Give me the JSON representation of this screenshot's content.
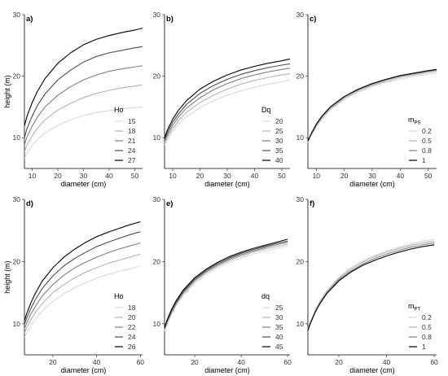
{
  "chart_data": [
    {
      "type": "line",
      "panel_label": "a)",
      "xlabel": "diameter (cm)",
      "ylabel": "height (m)",
      "xlim": [
        7,
        53
      ],
      "ylim": [
        5,
        30
      ],
      "xticks": [
        10,
        20,
        30,
        40,
        50
      ],
      "yticks": [
        10,
        20,
        30
      ],
      "legend_title": "Ho",
      "legend_title_sub": "",
      "legend_position": "bottom-right",
      "series": [
        {
          "name": "15",
          "color": "#d9d9d9",
          "x": [
            7,
            8,
            10,
            12,
            15,
            20,
            25,
            30,
            35,
            40,
            45,
            50,
            53
          ],
          "y": [
            6.6,
            7.5,
            8.7,
            9.7,
            10.8,
            12.0,
            12.9,
            13.6,
            14.1,
            14.4,
            14.7,
            14.9,
            15.0
          ]
        },
        {
          "name": "18",
          "color": "#b3b3b3",
          "x": [
            7,
            8,
            10,
            12,
            15,
            20,
            25,
            30,
            35,
            40,
            45,
            50,
            53
          ],
          "y": [
            7.7,
            8.8,
            10.3,
            11.5,
            12.9,
            14.5,
            15.6,
            16.5,
            17.2,
            17.7,
            18.1,
            18.4,
            18.6
          ]
        },
        {
          "name": "21",
          "color": "#808080",
          "x": [
            7,
            8,
            10,
            12,
            15,
            20,
            25,
            30,
            35,
            40,
            45,
            50,
            53
          ],
          "y": [
            8.8,
            10.1,
            11.9,
            13.3,
            15.0,
            16.9,
            18.3,
            19.4,
            20.2,
            20.8,
            21.2,
            21.5,
            21.7
          ]
        },
        {
          "name": "24",
          "color": "#4d4d4d",
          "x": [
            7,
            8,
            10,
            12,
            15,
            20,
            25,
            30,
            35,
            40,
            45,
            50,
            53
          ],
          "y": [
            10.0,
            11.5,
            13.5,
            15.2,
            17.1,
            19.4,
            21.0,
            22.3,
            23.2,
            23.8,
            24.2,
            24.6,
            24.8
          ]
        },
        {
          "name": "27",
          "color": "#000000",
          "x": [
            7,
            8,
            10,
            12,
            15,
            20,
            25,
            30,
            35,
            40,
            45,
            50,
            53
          ],
          "y": [
            11.9,
            13.5,
            15.7,
            17.5,
            19.6,
            22.1,
            23.8,
            25.1,
            26.0,
            26.6,
            27.1,
            27.5,
            27.8
          ]
        }
      ]
    },
    {
      "type": "line",
      "panel_label": "b)",
      "xlabel": "diameter (cm)",
      "ylabel": "",
      "xlim": [
        7,
        53
      ],
      "ylim": [
        5,
        30
      ],
      "xticks": [
        10,
        20,
        30,
        40,
        50
      ],
      "yticks": [
        10,
        20,
        30
      ],
      "legend_title": "Dq",
      "legend_title_sub": "",
      "legend_position": "bottom-right",
      "series": [
        {
          "name": "20",
          "color": "#d9d9d9",
          "x": [
            7,
            8,
            10,
            12,
            15,
            20,
            25,
            30,
            35,
            40,
            45,
            50,
            53
          ],
          "y": [
            8.8,
            9.6,
            11.0,
            12.1,
            13.4,
            14.9,
            16.0,
            16.9,
            17.6,
            18.2,
            18.7,
            19.1,
            19.4
          ]
        },
        {
          "name": "25",
          "color": "#b3b3b3",
          "x": [
            7,
            8,
            10,
            12,
            15,
            20,
            25,
            30,
            35,
            40,
            45,
            50,
            53
          ],
          "y": [
            9.1,
            10.0,
            11.5,
            12.7,
            14.1,
            15.7,
            16.9,
            17.9,
            18.7,
            19.3,
            19.8,
            20.2,
            20.4
          ]
        },
        {
          "name": "30",
          "color": "#808080",
          "x": [
            7,
            8,
            10,
            12,
            15,
            20,
            25,
            30,
            35,
            40,
            45,
            50,
            53
          ],
          "y": [
            9.4,
            10.4,
            12.0,
            13.3,
            14.8,
            16.5,
            17.8,
            18.8,
            19.6,
            20.2,
            20.7,
            21.1,
            21.3
          ]
        },
        {
          "name": "35",
          "color": "#4d4d4d",
          "x": [
            7,
            8,
            10,
            12,
            15,
            20,
            25,
            30,
            35,
            40,
            45,
            50,
            53
          ],
          "y": [
            9.7,
            10.8,
            12.5,
            13.8,
            15.4,
            17.2,
            18.5,
            19.5,
            20.3,
            20.9,
            21.4,
            21.8,
            22.0
          ]
        },
        {
          "name": "40",
          "color": "#000000",
          "x": [
            7,
            8,
            10,
            12,
            15,
            20,
            25,
            30,
            35,
            40,
            45,
            50,
            53
          ],
          "y": [
            10.0,
            11.2,
            13.0,
            14.4,
            16.0,
            17.9,
            19.2,
            20.2,
            21.0,
            21.6,
            22.1,
            22.5,
            22.8
          ]
        }
      ]
    },
    {
      "type": "line",
      "panel_label": "c)",
      "xlabel": "diameter (cm)",
      "ylabel": "",
      "xlim": [
        7,
        53
      ],
      "ylim": [
        5,
        30
      ],
      "xticks": [
        10,
        20,
        30,
        40,
        50
      ],
      "yticks": [
        10,
        20,
        30
      ],
      "legend_title": "m",
      "legend_title_sub": "PS",
      "legend_position": "bottom-right",
      "series": [
        {
          "name": "0.2",
          "color": "#d9d9d9",
          "x": [
            7,
            8,
            10,
            12,
            15,
            20,
            25,
            30,
            35,
            40,
            45,
            50,
            53
          ],
          "y": [
            9.2,
            10.2,
            11.8,
            13.0,
            14.5,
            16.2,
            17.4,
            18.3,
            19.0,
            19.5,
            20.0,
            20.3,
            20.5
          ]
        },
        {
          "name": "0.5",
          "color": "#b3b3b3",
          "x": [
            7,
            8,
            10,
            12,
            15,
            20,
            25,
            30,
            35,
            40,
            45,
            50,
            53
          ],
          "y": [
            9.3,
            10.3,
            11.9,
            13.2,
            14.7,
            16.4,
            17.6,
            18.5,
            19.2,
            19.8,
            20.2,
            20.6,
            20.8
          ]
        },
        {
          "name": "0.8",
          "color": "#808080",
          "x": [
            7,
            8,
            10,
            12,
            15,
            20,
            25,
            30,
            35,
            40,
            45,
            50,
            53
          ],
          "y": [
            9.4,
            10.4,
            12.1,
            13.4,
            14.9,
            16.6,
            17.8,
            18.7,
            19.4,
            20.0,
            20.4,
            20.8,
            21.0
          ]
        },
        {
          "name": "1",
          "color": "#000000",
          "x": [
            7,
            8,
            10,
            12,
            15,
            20,
            25,
            30,
            35,
            40,
            45,
            50,
            53
          ],
          "y": [
            9.5,
            10.5,
            12.2,
            13.5,
            15.0,
            16.7,
            17.9,
            18.8,
            19.5,
            20.1,
            20.5,
            20.9,
            21.1
          ]
        }
      ]
    },
    {
      "type": "line",
      "panel_label": "d)",
      "xlabel": "diameter (cm)",
      "ylabel": "height (m)",
      "xlim": [
        7,
        61
      ],
      "ylim": [
        5,
        30
      ],
      "xticks": [
        20,
        40,
        60
      ],
      "yticks": [
        10,
        20,
        30
      ],
      "legend_title": "Ho",
      "legend_title_sub": "",
      "legend_position": "bottom-right",
      "series": [
        {
          "name": "18",
          "color": "#d9d9d9",
          "x": [
            7,
            8,
            10,
            12,
            15,
            20,
            25,
            30,
            35,
            40,
            45,
            50,
            55,
            60
          ],
          "y": [
            7.8,
            8.5,
            9.7,
            10.7,
            12.0,
            13.6,
            14.8,
            15.8,
            16.6,
            17.3,
            17.9,
            18.4,
            18.8,
            19.3
          ]
        },
        {
          "name": "20",
          "color": "#b3b3b3",
          "x": [
            7,
            8,
            10,
            12,
            15,
            20,
            25,
            30,
            35,
            40,
            45,
            50,
            55,
            60
          ],
          "y": [
            8.5,
            9.3,
            10.7,
            11.8,
            13.2,
            15.0,
            16.3,
            17.4,
            18.3,
            19.0,
            19.7,
            20.2,
            20.7,
            21.2
          ]
        },
        {
          "name": "22",
          "color": "#808080",
          "x": [
            7,
            8,
            10,
            12,
            15,
            20,
            25,
            30,
            35,
            40,
            45,
            50,
            55,
            60
          ],
          "y": [
            9.2,
            10.1,
            11.6,
            12.8,
            14.4,
            16.3,
            17.8,
            19.0,
            19.9,
            20.7,
            21.4,
            22.0,
            22.5,
            23.0
          ]
        },
        {
          "name": "24",
          "color": "#4d4d4d",
          "x": [
            7,
            8,
            10,
            12,
            15,
            20,
            25,
            30,
            35,
            40,
            45,
            50,
            55,
            60
          ],
          "y": [
            9.9,
            10.9,
            12.5,
            13.9,
            15.6,
            17.7,
            19.3,
            20.5,
            21.5,
            22.4,
            23.1,
            23.7,
            24.3,
            24.8
          ]
        },
        {
          "name": "26",
          "color": "#000000",
          "x": [
            7,
            8,
            10,
            12,
            15,
            20,
            25,
            30,
            35,
            40,
            45,
            50,
            55,
            60
          ],
          "y": [
            10.5,
            11.6,
            13.4,
            14.9,
            16.8,
            19.0,
            20.7,
            22.0,
            23.1,
            24.0,
            24.7,
            25.3,
            25.9,
            26.4
          ]
        }
      ]
    },
    {
      "type": "line",
      "panel_label": "e)",
      "xlabel": "diameter (cm)",
      "ylabel": "",
      "xlim": [
        7,
        61
      ],
      "ylim": [
        5,
        30
      ],
      "xticks": [
        20,
        40,
        60
      ],
      "yticks": [
        10,
        20,
        30
      ],
      "legend_title": "dq",
      "legend_title_sub": "",
      "legend_position": "bottom-right",
      "series": [
        {
          "name": "25",
          "color": "#d9d9d9",
          "x": [
            7,
            8,
            10,
            12,
            15,
            20,
            25,
            30,
            35,
            40,
            45,
            50,
            55,
            60
          ],
          "y": [
            8.8,
            9.8,
            11.5,
            12.9,
            14.5,
            16.5,
            17.9,
            19.0,
            19.9,
            20.6,
            21.2,
            21.7,
            22.1,
            22.5
          ]
        },
        {
          "name": "30",
          "color": "#b3b3b3",
          "x": [
            7,
            8,
            10,
            12,
            15,
            20,
            25,
            30,
            35,
            40,
            45,
            50,
            55,
            60
          ],
          "y": [
            9.0,
            10.0,
            11.7,
            13.1,
            14.8,
            16.8,
            18.2,
            19.3,
            20.2,
            20.9,
            21.5,
            22.0,
            22.4,
            22.8
          ]
        },
        {
          "name": "35",
          "color": "#808080",
          "x": [
            7,
            8,
            10,
            12,
            15,
            20,
            25,
            30,
            35,
            40,
            45,
            50,
            55,
            60
          ],
          "y": [
            9.1,
            10.2,
            11.9,
            13.3,
            15.0,
            17.0,
            18.4,
            19.5,
            20.4,
            21.1,
            21.7,
            22.2,
            22.7,
            23.1
          ]
        },
        {
          "name": "40",
          "color": "#4d4d4d",
          "x": [
            7,
            8,
            10,
            12,
            15,
            20,
            25,
            30,
            35,
            40,
            45,
            50,
            55,
            60
          ],
          "y": [
            9.3,
            10.4,
            12.1,
            13.5,
            15.2,
            17.2,
            18.6,
            19.7,
            20.6,
            21.3,
            21.9,
            22.4,
            22.9,
            23.3
          ]
        },
        {
          "name": "45",
          "color": "#000000",
          "x": [
            7,
            8,
            10,
            12,
            15,
            20,
            25,
            30,
            35,
            40,
            45,
            50,
            55,
            60
          ],
          "y": [
            9.4,
            10.5,
            12.3,
            13.7,
            15.4,
            17.4,
            18.8,
            19.9,
            20.8,
            21.5,
            22.1,
            22.6,
            23.1,
            23.6
          ]
        }
      ]
    },
    {
      "type": "line",
      "panel_label": "f)",
      "xlabel": "diameter (cm)",
      "ylabel": "",
      "xlim": [
        7,
        61
      ],
      "ylim": [
        5,
        30
      ],
      "xticks": [
        20,
        40,
        60
      ],
      "yticks": [
        10,
        20,
        30
      ],
      "legend_title": "m",
      "legend_title_sub": "PT",
      "legend_position": "bottom-right",
      "series": [
        {
          "name": "0.2",
          "color": "#d9d9d9",
          "x": [
            7,
            8,
            10,
            12,
            15,
            20,
            25,
            30,
            35,
            40,
            45,
            50,
            55,
            60
          ],
          "y": [
            9.2,
            10.3,
            12.1,
            13.6,
            15.4,
            17.5,
            19.0,
            20.1,
            21.0,
            21.7,
            22.3,
            22.8,
            23.3,
            23.6
          ]
        },
        {
          "name": "0.5",
          "color": "#b3b3b3",
          "x": [
            7,
            8,
            10,
            12,
            15,
            20,
            25,
            30,
            35,
            40,
            45,
            50,
            55,
            60
          ],
          "y": [
            9.1,
            10.2,
            12.0,
            13.5,
            15.2,
            17.3,
            18.8,
            19.9,
            20.8,
            21.5,
            22.1,
            22.6,
            23.0,
            23.3
          ]
        },
        {
          "name": "0.8",
          "color": "#808080",
          "x": [
            7,
            8,
            10,
            12,
            15,
            20,
            25,
            30,
            35,
            40,
            45,
            50,
            55,
            60
          ],
          "y": [
            9.0,
            10.1,
            11.9,
            13.3,
            15.0,
            17.1,
            18.5,
            19.6,
            20.5,
            21.2,
            21.8,
            22.3,
            22.7,
            23.0
          ]
        },
        {
          "name": "1",
          "color": "#000000",
          "x": [
            7,
            8,
            10,
            12,
            15,
            20,
            25,
            30,
            35,
            40,
            45,
            50,
            55,
            60
          ],
          "y": [
            8.9,
            10.0,
            11.8,
            13.2,
            14.9,
            16.9,
            18.3,
            19.4,
            20.2,
            20.9,
            21.5,
            22.0,
            22.4,
            22.7
          ]
        }
      ]
    }
  ]
}
